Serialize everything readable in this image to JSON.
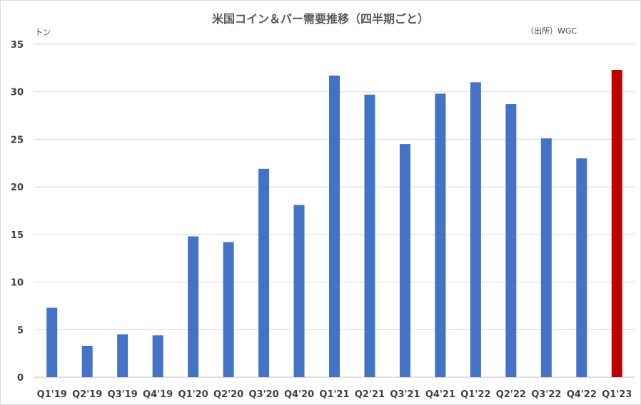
{
  "chart_data": {
    "type": "bar",
    "title": "米国コイン＆バー需要推移（四半期ごと）",
    "unit_label": "トン",
    "source": "（出所）WGC",
    "categories": [
      "Q1'19",
      "Q2'19",
      "Q3'19",
      "Q4'19",
      "Q1'20",
      "Q2'20",
      "Q3'20",
      "Q4'20",
      "Q1'21",
      "Q2'21",
      "Q3'21",
      "Q4'21",
      "Q1'22",
      "Q2'22",
      "Q3'22",
      "Q4'22",
      "Q1'23"
    ],
    "values": [
      7.3,
      3.3,
      4.5,
      4.4,
      14.8,
      14.2,
      21.9,
      18.1,
      31.7,
      29.7,
      24.5,
      29.8,
      31.0,
      28.7,
      25.1,
      23.0,
      32.3
    ],
    "ylim": [
      0,
      35
    ],
    "yticks": [
      "0",
      "5",
      "10",
      "15",
      "20",
      "25",
      "30",
      "35"
    ],
    "grid": true,
    "bar_color": "#4472C4",
    "highlight_color": "#C00000",
    "highlight_index": 16
  }
}
